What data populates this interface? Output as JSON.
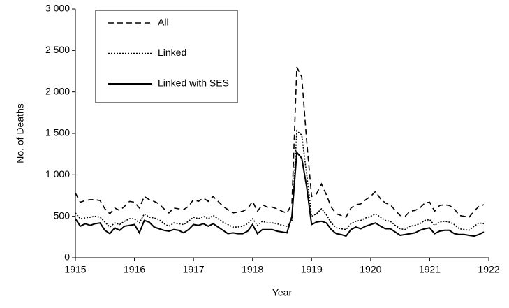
{
  "chart_data": {
    "type": "line",
    "x_label": "Year",
    "y_label": "No. of Deaths",
    "x": [
      1915,
      1915.083,
      1915.167,
      1915.25,
      1915.333,
      1915.417,
      1915.5,
      1915.583,
      1915.667,
      1915.75,
      1915.833,
      1915.917,
      1916,
      1916.083,
      1916.167,
      1916.25,
      1916.333,
      1916.417,
      1916.5,
      1916.583,
      1916.667,
      1916.75,
      1916.833,
      1916.917,
      1917,
      1917.083,
      1917.167,
      1917.25,
      1917.333,
      1917.417,
      1917.5,
      1917.583,
      1917.667,
      1917.75,
      1917.833,
      1917.917,
      1918,
      1918.083,
      1918.167,
      1918.25,
      1918.333,
      1918.417,
      1918.5,
      1918.583,
      1918.667,
      1918.75,
      1918.833,
      1918.917,
      1919,
      1919.083,
      1919.167,
      1919.25,
      1919.333,
      1919.417,
      1919.5,
      1919.583,
      1919.667,
      1919.75,
      1919.833,
      1919.917,
      1920,
      1920.083,
      1920.167,
      1920.25,
      1920.333,
      1920.417,
      1920.5,
      1920.583,
      1920.667,
      1920.75,
      1920.833,
      1920.917,
      1921,
      1921.083,
      1921.167,
      1921.25,
      1921.333,
      1921.417,
      1921.5,
      1921.583,
      1921.667,
      1921.75,
      1921.833,
      1921.917
    ],
    "series": [
      {
        "name": "All",
        "color": "#000000",
        "dash": "dashed",
        "values": [
          780,
          670,
          690,
          700,
          700,
          690,
          590,
          530,
          600,
          570,
          620,
          680,
          670,
          600,
          740,
          700,
          680,
          650,
          590,
          540,
          600,
          590,
          580,
          620,
          700,
          680,
          720,
          680,
          740,
          680,
          620,
          580,
          540,
          550,
          560,
          590,
          680,
          560,
          640,
          610,
          610,
          590,
          560,
          540,
          650,
          2300,
          2180,
          1400,
          740,
          770,
          890,
          760,
          610,
          530,
          510,
          490,
          600,
          640,
          650,
          700,
          740,
          800,
          710,
          660,
          640,
          570,
          510,
          500,
          560,
          570,
          600,
          660,
          670,
          560,
          630,
          640,
          630,
          590,
          510,
          500,
          490,
          560,
          620,
          640
        ]
      },
      {
        "name": "Linked",
        "color": "#000000",
        "dash": "dotted",
        "values": [
          540,
          470,
          480,
          490,
          500,
          490,
          430,
          370,
          420,
          400,
          440,
          470,
          470,
          420,
          530,
          490,
          480,
          460,
          410,
          380,
          420,
          410,
          400,
          440,
          490,
          470,
          500,
          470,
          510,
          470,
          430,
          400,
          370,
          370,
          380,
          410,
          470,
          390,
          440,
          420,
          420,
          410,
          390,
          380,
          450,
          1530,
          1480,
          1000,
          500,
          530,
          590,
          520,
          420,
          360,
          350,
          340,
          410,
          440,
          450,
          480,
          500,
          530,
          490,
          450,
          440,
          390,
          350,
          340,
          380,
          390,
          410,
          450,
          460,
          390,
          430,
          440,
          430,
          400,
          350,
          340,
          330,
          380,
          420,
          410
        ]
      },
      {
        "name": "Linked with SES",
        "color": "#000000",
        "dash": "solid",
        "values": [
          470,
          380,
          410,
          390,
          410,
          420,
          330,
          290,
          360,
          330,
          380,
          390,
          400,
          300,
          450,
          430,
          370,
          350,
          330,
          320,
          340,
          330,
          300,
          340,
          400,
          390,
          410,
          380,
          410,
          370,
          330,
          290,
          300,
          290,
          290,
          320,
          400,
          290,
          340,
          340,
          340,
          320,
          310,
          300,
          500,
          1270,
          1200,
          850,
          400,
          430,
          440,
          420,
          340,
          290,
          280,
          260,
          340,
          370,
          350,
          380,
          400,
          420,
          380,
          350,
          350,
          310,
          270,
          280,
          290,
          300,
          330,
          350,
          360,
          290,
          320,
          330,
          330,
          290,
          280,
          280,
          270,
          260,
          280,
          310
        ]
      }
    ],
    "xlim": [
      1915,
      1922
    ],
    "xticks": [
      1915,
      1916,
      1917,
      1918,
      1919,
      1920,
      1921,
      1922
    ],
    "ylim": [
      0,
      3000
    ],
    "yticks": [
      0,
      500,
      {
        "value": 1000,
        "label": "1 000"
      },
      {
        "value": 1500,
        "label": "1 500"
      },
      {
        "value": 2000,
        "label": "2 000"
      },
      {
        "value": 2500,
        "label": "2 500"
      },
      {
        "value": 3000,
        "label": "3 000"
      }
    ],
    "grid": false,
    "legend": "upper left"
  }
}
